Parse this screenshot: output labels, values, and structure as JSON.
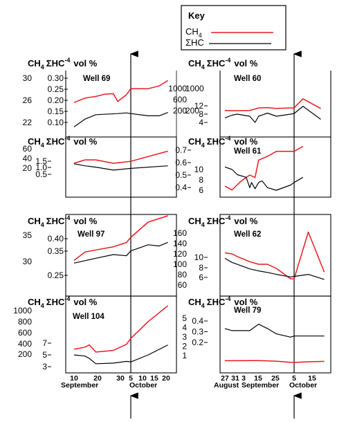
{
  "colors": {
    "ch4": "#e8191f",
    "hc": "#000000"
  },
  "key": {
    "title": "Key",
    "entries": [
      {
        "label": "CH4",
        "color": "#e8191f"
      },
      {
        "label": "ΣHC",
        "color": "#000000"
      }
    ]
  },
  "header": {
    "ch4": "CH",
    "sub4": "4",
    "sum": "ΣHC",
    "sup": "-4",
    "unit": "vol %"
  },
  "x_axes": {
    "left": {
      "ticks": [
        "10",
        "20",
        "30",
        "5",
        "10",
        "15",
        "20"
      ],
      "months": [
        "September",
        "October"
      ]
    },
    "right": {
      "ticks": [
        "27",
        "31",
        "3",
        "15",
        "25",
        "5",
        "15"
      ],
      "months": [
        "August",
        "September",
        "October"
      ]
    }
  },
  "chart_data": [
    {
      "type": "line",
      "title": "Well 69",
      "axis_left_ticks": [
        "30",
        "26",
        "22"
      ],
      "axis_inner_ticks": [
        "0.30",
        "0.25",
        "0.20",
        "0.15",
        "0.10"
      ],
      "axis_right_ticks": [
        "1000",
        "200"
      ],
      "series": [
        {
          "name": "CH4",
          "x": [
            "Sep 9",
            "Sep 14",
            "Sep 19",
            "Sep 23",
            "Sep 27",
            "Sep 29",
            "Oct 3",
            "Oct 5",
            "Oct 13",
            "Oct 18",
            "Oct 22"
          ],
          "values": [
            25.6,
            26.4,
            26.7,
            27.1,
            27.2,
            25.8,
            27.0,
            28.1,
            28.1,
            28.6,
            29.6
          ]
        },
        {
          "name": "ΣHC",
          "x": [
            "Sep 9",
            "Sep 14",
            "Sep 19",
            "Sep 29",
            "Oct 3",
            "Oct 5",
            "Oct 13",
            "Oct 18",
            "Oct 22"
          ],
          "values": [
            0.08,
            0.115,
            0.135,
            0.14,
            0.143,
            0.14,
            0.13,
            0.13,
            0.145
          ]
        }
      ]
    },
    {
      "type": "line",
      "title": "",
      "axis_left_ticks": [
        "60",
        "40",
        "20"
      ],
      "axis_inner_ticks": [
        "1.5",
        "1.0",
        "0.5"
      ],
      "series": [
        {
          "name": "CH4",
          "x": [
            "Sep 9",
            "Sep 14",
            "Sep 19",
            "Sep 27",
            "Oct 5",
            "Oct 22"
          ],
          "values": [
            30,
            37,
            37,
            30,
            34,
            55
          ]
        },
        {
          "name": "ΣHC",
          "x": [
            "Sep 9",
            "Sep 14",
            "Sep 19",
            "Sep 27",
            "Oct 5",
            "Oct 22"
          ],
          "values": [
            1.3,
            1.15,
            1.05,
            0.82,
            0.95,
            1.15
          ]
        }
      ]
    },
    {
      "type": "line",
      "title": "Well 97",
      "axis_left_ticks": [
        "35",
        "30"
      ],
      "axis_inner_ticks": [
        "0.40",
        "0.35",
        "0.25"
      ],
      "series": [
        {
          "name": "CH4",
          "x": [
            "Sep 9",
            "Sep 14",
            "Sep 19",
            "Sep 27",
            "Oct 3",
            "Oct 5",
            "Oct 13",
            "Oct 22"
          ],
          "values": [
            30.2,
            31.8,
            32.2,
            32.8,
            33.6,
            34.6,
            37.5,
            38.7
          ]
        },
        {
          "name": "ΣHC",
          "x": [
            "Sep 9",
            "Sep 14",
            "Sep 19",
            "Sep 27",
            "Oct 3",
            "Oct 5",
            "Oct 13",
            "Oct 18",
            "Oct 22"
          ],
          "values": [
            0.3,
            0.31,
            0.32,
            0.335,
            0.33,
            0.35,
            0.375,
            0.37,
            0.385
          ]
        }
      ]
    },
    {
      "type": "line",
      "title": "Well 104",
      "axis_left_ticks": [
        "1000",
        "800",
        "600",
        "400",
        "200"
      ],
      "axis_inner_ticks": [
        "7",
        "5",
        "3"
      ],
      "series": [
        {
          "name": "CH4",
          "x": [
            "Sep 9",
            "Sep 14",
            "Sep 16",
            "Sep 19",
            "Sep 27",
            "Oct 3",
            "Oct 5",
            "Oct 13",
            "Oct 22"
          ],
          "values": [
            290,
            330,
            370,
            240,
            270,
            380,
            490,
            800,
            1090
          ]
        },
        {
          "name": "ΣHC",
          "x": [
            "Sep 9",
            "Sep 14",
            "Sep 16",
            "Sep 19",
            "Sep 27",
            "Oct 3",
            "Oct 5",
            "Oct 13",
            "Oct 22"
          ],
          "values": [
            5.0,
            4.8,
            4.4,
            3.5,
            3.6,
            3.9,
            3.8,
            5.0,
            6.7
          ]
        }
      ]
    },
    {
      "type": "line",
      "title": "Well 60",
      "axis_left_ticks": [
        "1000",
        "600",
        "200"
      ],
      "axis_inner_ticks": [
        "12",
        "8",
        "4"
      ],
      "series": [
        {
          "name": "CH4",
          "x": [
            "Aug 27",
            "Aug 31",
            "Sep 3",
            "Sep 10",
            "Sep 13",
            "Sep 15",
            "Sep 20",
            "Sep 25",
            "Oct 3",
            "Oct 5",
            "Oct 10",
            "Oct 20"
          ],
          "values": [
            210,
            200,
            200,
            210,
            260,
            300,
            310,
            280,
            300,
            300,
            630,
            280
          ]
        },
        {
          "name": "ΣHC",
          "x": [
            "Aug 27",
            "Aug 31",
            "Sep 3",
            "Sep 10",
            "Sep 13",
            "Sep 15",
            "Sep 20",
            "Sep 25",
            "Oct 3",
            "Oct 5",
            "Oct 10",
            "Oct 20"
          ],
          "values": [
            6.2,
            7.5,
            8.0,
            7.0,
            4.0,
            7.0,
            8.5,
            7.0,
            8.0,
            8.3,
            11.8,
            5.5
          ]
        }
      ]
    },
    {
      "type": "line",
      "title": "Well 61",
      "axis_inner_ticks": [
        "0.7",
        "0.6",
        "0.5",
        "0.4"
      ],
      "axis_left_ticks": [
        "10",
        "8",
        "6"
      ],
      "series": [
        {
          "name": "CH4",
          "x": [
            "Aug 27",
            "Aug 31",
            "Sep 5",
            "Sep 10",
            "Sep 13",
            "Sep 15",
            "Sep 20",
            "Sep 25",
            "Oct 5",
            "Oct 10"
          ],
          "values": [
            0.41,
            0.38,
            0.45,
            0.5,
            0.48,
            0.62,
            0.65,
            0.69,
            0.69,
            0.73
          ]
        },
        {
          "name": "ΣHC",
          "x": [
            "Aug 27",
            "Aug 31",
            "Sep 3",
            "Sep 8",
            "Sep 10",
            "Sep 11",
            "Sep 13",
            "Sep 15",
            "Sep 17",
            "Sep 20",
            "Sep 25",
            "Oct 3",
            "Oct 5",
            "Oct 10"
          ],
          "values": [
            10.5,
            10.0,
            9.0,
            8.5,
            6.5,
            7.5,
            6.3,
            7.5,
            7.8,
            6.5,
            6.0,
            7.0,
            7.5,
            8.5
          ]
        }
      ]
    },
    {
      "type": "line",
      "title": "Well 62",
      "axis_left_ticks": [
        "160",
        "140",
        "120",
        "100",
        "80",
        "60"
      ],
      "axis_inner_ticks": [
        "10",
        "8",
        "6"
      ],
      "series": [
        {
          "name": "CH4",
          "x": [
            "Aug 27",
            "Aug 31",
            "Sep 3",
            "Sep 10",
            "Sep 15",
            "Sep 20",
            "Sep 25",
            "Oct 3",
            "Oct 5",
            "Oct 13",
            "Oct 22"
          ],
          "values": [
            122,
            120,
            115,
            105,
            100,
            100,
            92,
            72,
            72,
            162,
            85
          ]
        },
        {
          "name": "ΣHC",
          "x": [
            "Aug 27",
            "Aug 31",
            "Sep 3",
            "Sep 10",
            "Sep 15",
            "Sep 20",
            "Sep 25",
            "Oct 3",
            "Oct 5",
            "Oct 13",
            "Oct 22"
          ],
          "values": [
            9.8,
            9.0,
            8.6,
            7.7,
            7.3,
            7.0,
            6.6,
            6.1,
            6.2,
            6.6,
            5.6
          ]
        }
      ]
    },
    {
      "type": "line",
      "title": "Well 79",
      "axis_left_ticks": [
        "5",
        "4",
        "3",
        "2",
        "1"
      ],
      "axis_inner_ticks": [
        "0.4",
        "0.3",
        "0.2"
      ],
      "series": [
        {
          "name": "CH4",
          "x": [
            "Aug 27",
            "Aug 31",
            "Sep 3",
            "Sep 10",
            "Sep 15",
            "Sep 20",
            "Sep 25",
            "Oct 3",
            "Oct 5",
            "Oct 13",
            "Oct 22"
          ],
          "values": [
            0.45,
            0.45,
            0.45,
            0.46,
            0.47,
            0.44,
            0.4,
            0.28,
            0.27,
            0.33,
            0.38
          ]
        },
        {
          "name": "ΣHC",
          "x": [
            "Aug 27",
            "Aug 31",
            "Sep 3",
            "Sep 10",
            "Sep 15",
            "Sep 20",
            "Sep 25",
            "Oct 3",
            "Oct 5",
            "Oct 13",
            "Oct 22"
          ],
          "values": [
            0.33,
            0.31,
            0.31,
            0.31,
            0.37,
            0.33,
            0.28,
            0.25,
            0.26,
            0.26,
            0.26
          ]
        }
      ]
    }
  ]
}
